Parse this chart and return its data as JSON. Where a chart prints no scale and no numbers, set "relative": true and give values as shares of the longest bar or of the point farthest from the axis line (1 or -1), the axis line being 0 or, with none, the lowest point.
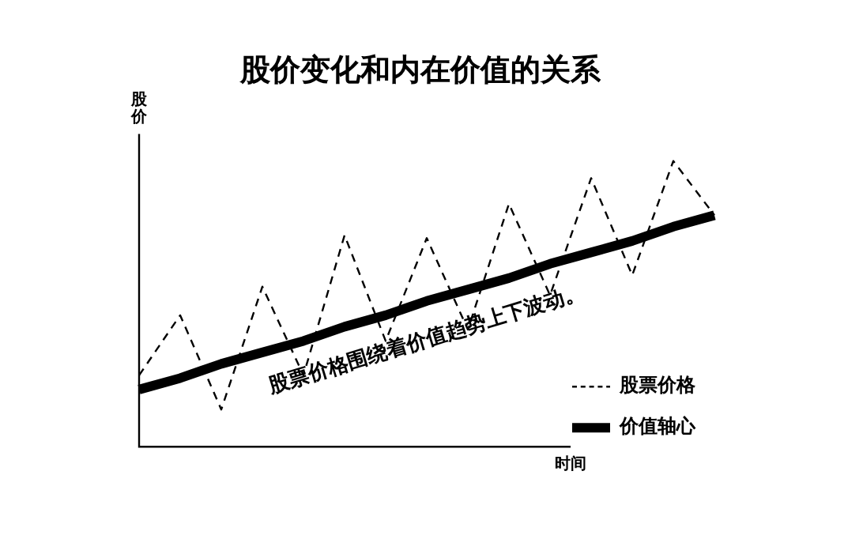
{
  "chart_data": {
    "type": "line",
    "title": "股价变化和内在价值的关系",
    "xlabel": "时间",
    "ylabel": "股价",
    "relative": true,
    "grid": false,
    "legend": "bottom right",
    "annotations": [
      "股票价格围绕着价值趋势上下波动。"
    ],
    "categories": [
      null,
      null,
      null,
      null,
      null,
      null,
      null,
      null,
      null,
      null,
      null,
      null,
      null,
      null,
      null
    ],
    "series": [
      {
        "name": "股票价格",
        "color": "#000000",
        "line_style": "dashed",
        "values": [
          0.25,
          0.46,
          0.13,
          0.56,
          0.25,
          0.74,
          0.37,
          0.73,
          0.41,
          0.85,
          0.53,
          0.94,
          0.6,
          1,
          0.81
        ]
      },
      {
        "name": "价值轴心",
        "color": "#000000",
        "line_style": "solid",
        "values": [
          0.2,
          0.24,
          0.29,
          0.33,
          0.37,
          0.42,
          0.46,
          0.51,
          0.55,
          0.59,
          0.64,
          0.68,
          0.72,
          0.77,
          0.81
        ]
      }
    ]
  }
}
